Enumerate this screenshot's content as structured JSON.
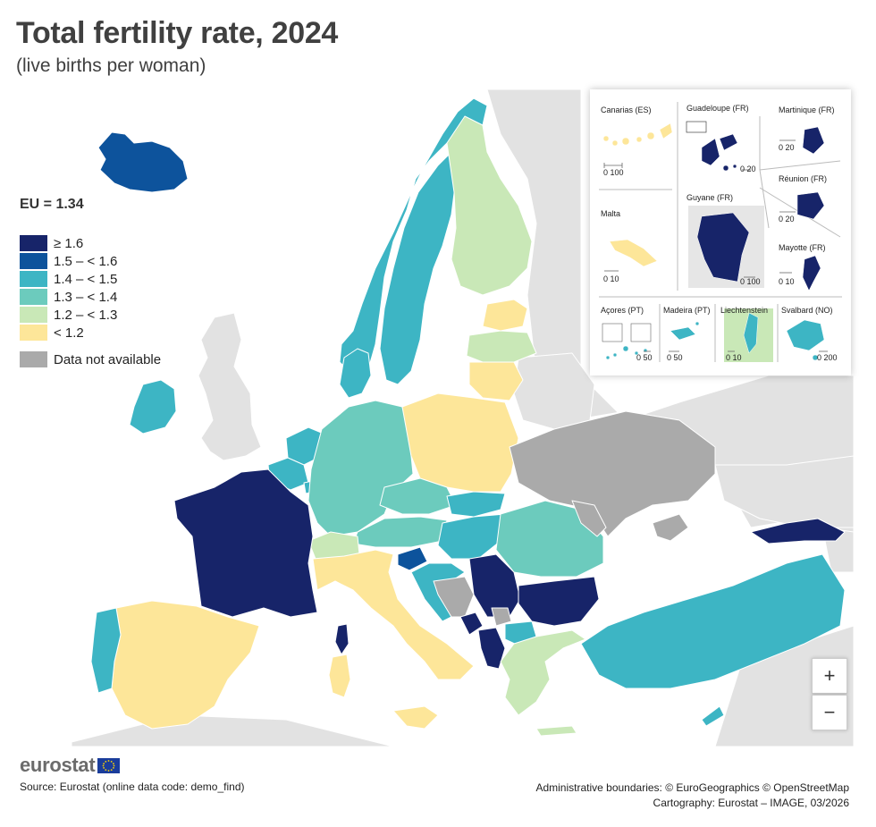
{
  "title": "Total fertility rate, 2024",
  "subtitle": "(live births per woman)",
  "eu_value": "EU = 1.34",
  "legend": [
    {
      "label": "≥ 1.6",
      "color": "#172469"
    },
    {
      "label": "1.5 – < 1.6",
      "color": "#0d539c"
    },
    {
      "label": "1.4 – < 1.5",
      "color": "#3db5c4"
    },
    {
      "label": "1.3 – < 1.4",
      "color": "#6ccbbd"
    },
    {
      "label": "1.2 – < 1.3",
      "color": "#c9e8b7"
    },
    {
      "label": "< 1.2",
      "color": "#fde699"
    },
    {
      "label": "Data not available",
      "color": "#aaaaaa"
    }
  ],
  "insets": {
    "canarias": {
      "name": "Canarias (ES)",
      "scale": "0  100"
    },
    "guadeloupe": {
      "name": "Guadeloupe (FR)",
      "scale": "0  20"
    },
    "martinique": {
      "name": "Martinique (FR)",
      "scale": "0  20"
    },
    "reunion": {
      "name": "Réunion (FR)",
      "scale": "0  20"
    },
    "malta": {
      "name": "Malta",
      "scale": "0  10"
    },
    "guyane": {
      "name": "Guyane (FR)",
      "scale": "0  100"
    },
    "mayotte": {
      "name": "Mayotte (FR)",
      "scale": "0  10"
    },
    "acores": {
      "name": "Açores (PT)",
      "scale": "0  50"
    },
    "madeira": {
      "name": "Madeira (PT)",
      "scale": "0  50"
    },
    "liechtenstein": {
      "name": "Liechtenstein",
      "scale": "0  10"
    },
    "svalbard": {
      "name": "Svalbard (NO)",
      "scale": "0  200"
    }
  },
  "zoom": {
    "in": "+",
    "out": "−"
  },
  "logo_text": "eurostat",
  "source": "Source: Eurostat (online data code: demo_find)",
  "credits_line1": "Administrative boundaries: © EuroGeographics © OpenStreetMap",
  "credits_line2": "Cartography: Eurostat – IMAGE, 03/2026",
  "colors": {
    "c16": "#172469",
    "c15": "#0d539c",
    "c14": "#3db5c4",
    "c13": "#6ccbbd",
    "c12": "#c9e8b7",
    "c11": "#fde699",
    "na": "#aaaaaa",
    "nonEU": "#e2e2e2"
  }
}
